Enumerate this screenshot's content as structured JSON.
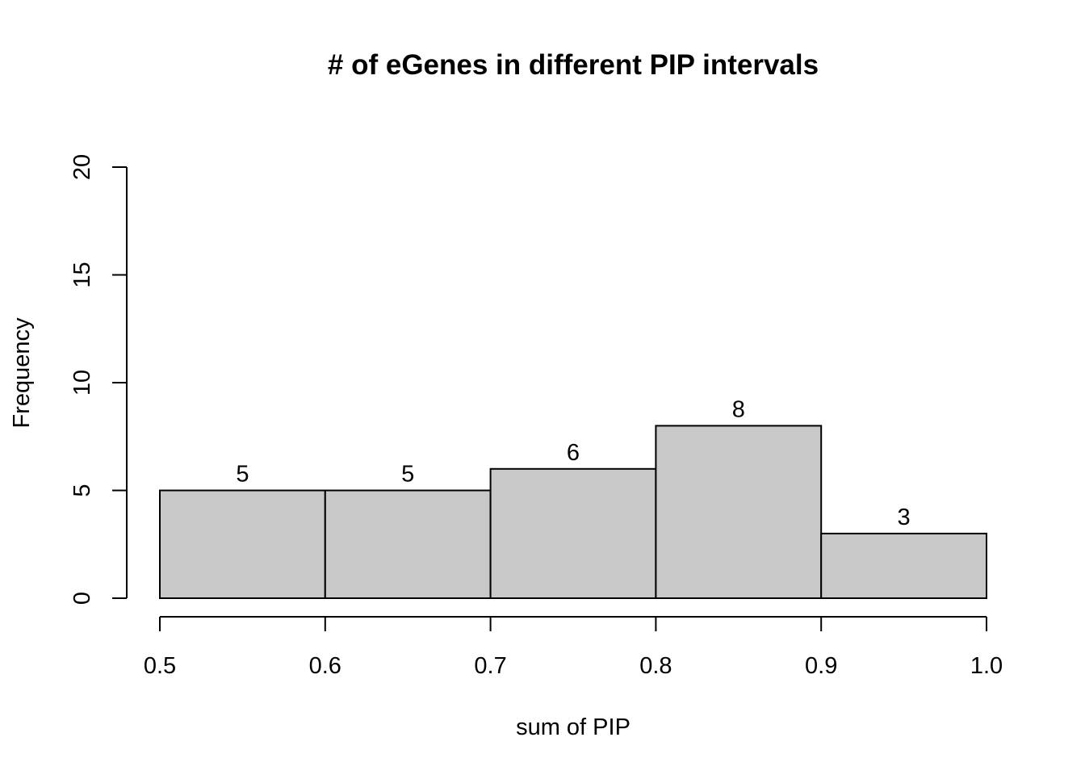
{
  "chart_data": {
    "type": "histogram",
    "title": "# of eGenes in different PIP intervals",
    "xlabel": "sum of PIP",
    "ylabel": "Frequency",
    "bins": [
      {
        "start": 0.5,
        "end": 0.6,
        "count": 5
      },
      {
        "start": 0.6,
        "end": 0.7,
        "count": 5
      },
      {
        "start": 0.7,
        "end": 0.8,
        "count": 6
      },
      {
        "start": 0.8,
        "end": 0.9,
        "count": 8
      },
      {
        "start": 0.9,
        "end": 1.0,
        "count": 3
      }
    ],
    "x_ticks": [
      "0.5",
      "0.6",
      "0.7",
      "0.8",
      "0.9",
      "1.0"
    ],
    "y_ticks": [
      "0",
      "5",
      "10",
      "15",
      "20"
    ],
    "xlim": [
      0.5,
      1.0
    ],
    "ylim": [
      0,
      20
    ],
    "bar_color": "#c8c8c8",
    "grid": false
  }
}
